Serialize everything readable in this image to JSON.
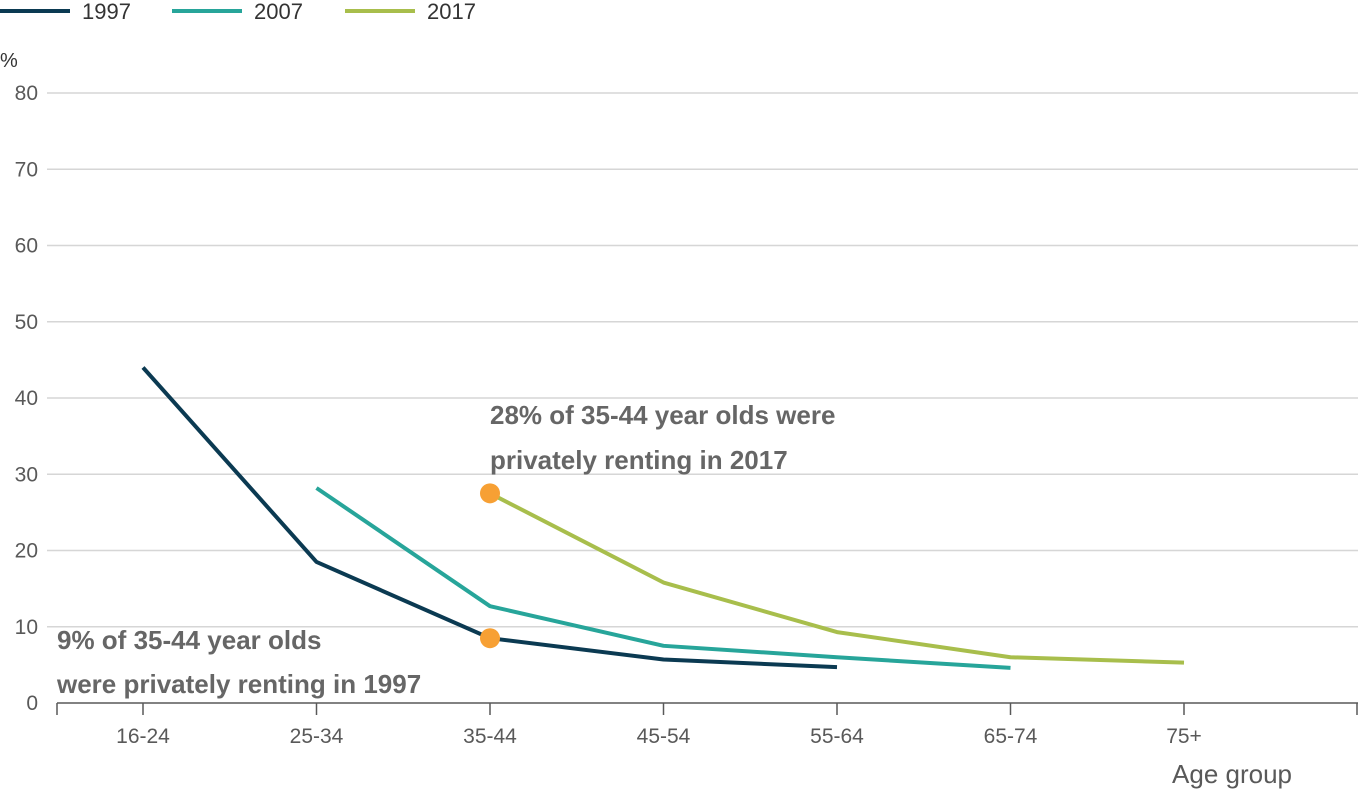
{
  "chart_data": {
    "type": "line",
    "categories": [
      "16-24",
      "25-34",
      "35-44",
      "45-54",
      "55-64",
      "65-74",
      "75+"
    ],
    "xlabel": "Age group",
    "ylabel": "%",
    "ylim": [
      0,
      80
    ],
    "yticks": [
      0,
      10,
      20,
      30,
      40,
      50,
      60,
      70,
      80
    ],
    "grid": true,
    "legend_position": "top-left",
    "series": [
      {
        "name": "1997",
        "color": "#0b3a52",
        "values": [
          44,
          18.5,
          8.5,
          5.7,
          4.7,
          null,
          null
        ]
      },
      {
        "name": "2007",
        "color": "#27a59a",
        "values": [
          null,
          28.2,
          12.7,
          7.5,
          6.0,
          4.6,
          null
        ]
      },
      {
        "name": "2017",
        "color": "#a8be4c",
        "values": [
          null,
          null,
          27.5,
          15.8,
          9.3,
          6.0,
          5.3
        ]
      }
    ],
    "highlights": [
      {
        "category": "35-44",
        "value": 27.5,
        "color": "#f7a034"
      },
      {
        "category": "35-44",
        "value": 8.5,
        "color": "#f7a034"
      }
    ],
    "annotations": [
      {
        "lines": [
          "28% of 35-44 year olds were",
          "privately renting in 2017"
        ]
      },
      {
        "lines": [
          "9% of 35-44 year olds",
          "were privately renting in 1997"
        ]
      }
    ]
  }
}
